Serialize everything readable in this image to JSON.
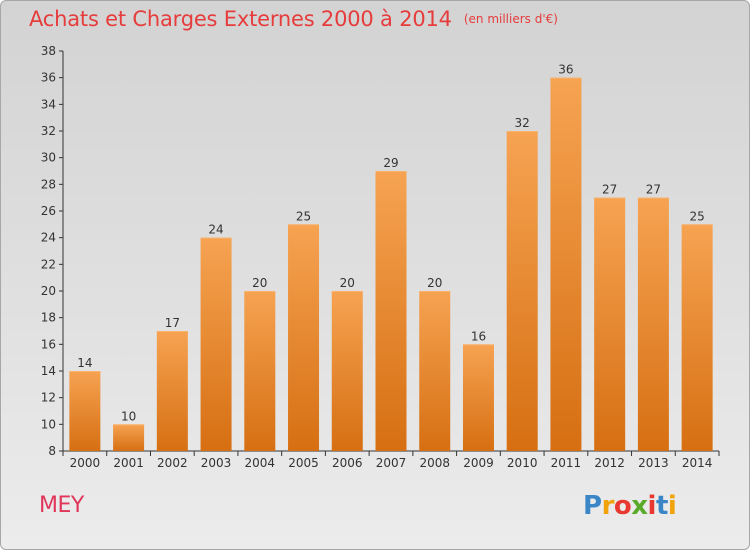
{
  "chart_data": {
    "type": "bar",
    "title": "Achats et Charges Externes 2000 à 2014",
    "unit_label": "(en milliers d'€)",
    "categories": [
      "2000",
      "2001",
      "2002",
      "2003",
      "2004",
      "2005",
      "2006",
      "2007",
      "2008",
      "2009",
      "2010",
      "2011",
      "2012",
      "2013",
      "2014"
    ],
    "values": [
      14,
      10,
      17,
      24,
      20,
      25,
      20,
      29,
      20,
      16,
      32,
      36,
      27,
      27,
      25
    ],
    "data_labels": [
      "14",
      "10",
      "17",
      "24",
      "20",
      "25",
      "20",
      "29",
      "20",
      "16",
      "32",
      "36",
      "27",
      "27",
      "25"
    ],
    "ylim": [
      8,
      38
    ],
    "yticks": [
      "8",
      "10",
      "12",
      "14",
      "16",
      "18",
      "20",
      "22",
      "24",
      "26",
      "28",
      "30",
      "32",
      "34",
      "36",
      "38"
    ],
    "xlabel": "",
    "ylabel": "",
    "grid": false,
    "legend": "none",
    "bar_color": "#f08c2c",
    "bar_color_light": "#f6a352",
    "bar_color_dark": "#d66f12"
  },
  "footer": {
    "commune": "MEY",
    "commune_color": "#e0365a",
    "logo_letters": [
      {
        "char": "P",
        "color": "#3b86c6"
      },
      {
        "char": "r",
        "color": "#f0a30a"
      },
      {
        "char": "o",
        "color": "#e8382f"
      },
      {
        "char": "x",
        "color": "#5aaa2a"
      },
      {
        "char": "i",
        "color": "#e8382f"
      },
      {
        "char": "t",
        "color": "#3b86c6"
      },
      {
        "char": "i",
        "color": "#f0a30a"
      }
    ]
  },
  "colors": {
    "title": "#e63c3c",
    "axis": "#333333",
    "label": "#333333"
  }
}
